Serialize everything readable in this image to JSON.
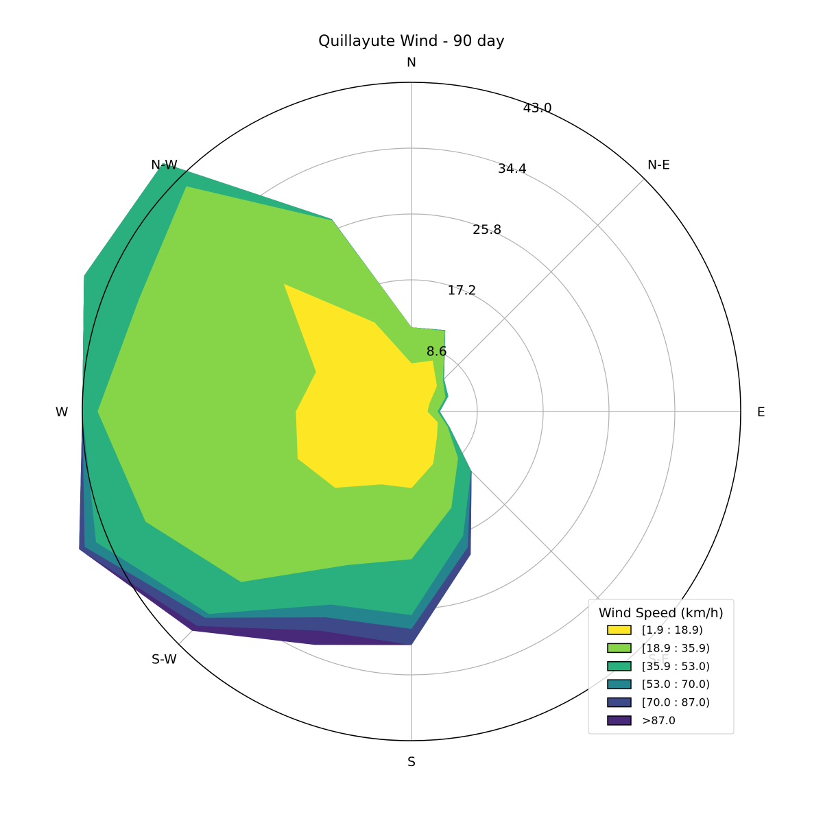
{
  "chart_data": {
    "type": "wind-rose",
    "title": "Quillayute Wind - 90 day",
    "directions": [
      "N",
      "N-E",
      "E",
      "S-E",
      "S",
      "S-W",
      "W",
      "N-W"
    ],
    "direction_angles_deg": [
      0,
      22.5,
      45,
      67.5,
      90,
      112.5,
      135,
      157.5,
      180,
      202.5,
      225,
      247.5,
      270,
      292.5,
      315,
      337.5
    ],
    "radial_ticks": [
      "8.6",
      "17.2",
      "25.8",
      "34.4",
      "43.0"
    ],
    "radial_tick_values": [
      8.6,
      17.2,
      25.8,
      34.4,
      43.0
    ],
    "r_max": 43.0,
    "grid": true,
    "legend": {
      "title": "Wind Speed (km/h)",
      "placement": "lower-right",
      "entries": [
        "[1.9 : 18.9)",
        "[18.9 : 35.9)",
        "[35.9 : 53.0)",
        "[53.0 : 70.0)",
        "[70.0 : 87.0)",
        ">87.0"
      ]
    },
    "colors": [
      "#fde725",
      "#86d549",
      "#2ab07f",
      "#25858e",
      "#3e4989",
      "#482878"
    ],
    "series": [
      {
        "name": "[1.9 : 18.9)",
        "cumulative_values": [
          6.3,
          7.2,
          4.7,
          2.5,
          2.1,
          3.7,
          4.7,
          7.4,
          10.0,
          10.3,
          14.1,
          16.1,
          15.1,
          13.5,
          23.6,
          12.6
        ]
      },
      {
        "name": "[18.9 : 35.9)",
        "cumulative_values": [
          11.0,
          11.4,
          5.8,
          4.8,
          3.4,
          5.1,
          8.6,
          13.6,
          19.3,
          21.7,
          31.5,
          37.6,
          41.0,
          38.5,
          41.6,
          27.0
        ]
      },
      {
        "name": "[35.9 : 53.0)",
        "cumulative_values": [
          11.0,
          11.5,
          6.0,
          5.2,
          3.7,
          5.4,
          11.0,
          17.6,
          26.6,
          27.3,
          37.4,
          44.6,
          43.0,
          46.3,
          45.9,
          27.2
        ]
      },
      {
        "name": "[53.0 : 70.0)",
        "cumulative_values": [
          11.0,
          11.5,
          6.0,
          5.2,
          3.7,
          5.4,
          11.0,
          19.2,
          28.4,
          29.1,
          38.1,
          46.2,
          43.0,
          46.3,
          45.9,
          27.2
        ]
      },
      {
        "name": "[70.0 : 87.0)",
        "cumulative_values": [
          11.0,
          11.5,
          6.0,
          5.2,
          3.7,
          5.4,
          11.1,
          20.2,
          30.5,
          31.0,
          39.6,
          47.0,
          43.0,
          46.3,
          45.9,
          27.2
        ]
      },
      {
        "name": ">87.0",
        "cumulative_values": [
          11.0,
          11.5,
          6.0,
          5.2,
          3.7,
          5.4,
          11.1,
          20.2,
          30.5,
          33.0,
          40.5,
          47.0,
          43.0,
          46.3,
          45.9,
          27.2
        ]
      }
    ]
  }
}
